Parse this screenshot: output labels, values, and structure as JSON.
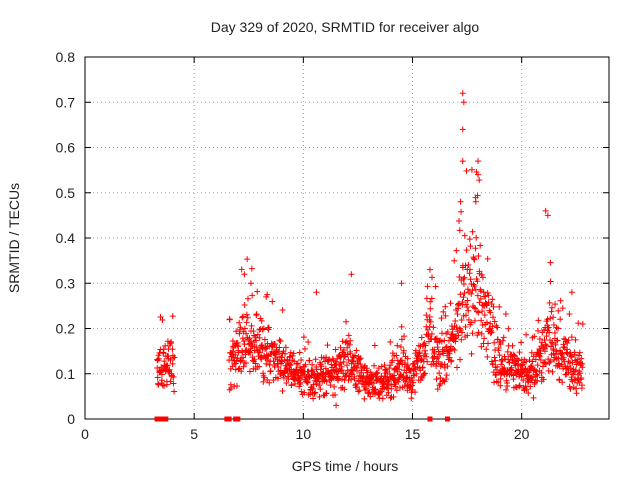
{
  "chart_data": {
    "type": "scatter",
    "title": "Day 329 of 2020, SRMTID for receiver algo",
    "xlabel": "GPS time / hours",
    "ylabel": "SRMTID / TECUs",
    "xlim": [
      0,
      24
    ],
    "ylim": [
      0,
      0.8
    ],
    "x_ticks": [
      "0",
      "5",
      "10",
      "15",
      "20"
    ],
    "y_ticks": [
      "0",
      "0.1",
      "0.2",
      "0.3",
      "0.4",
      "0.5",
      "0.6",
      "0.7",
      "0.8"
    ],
    "grid": true,
    "marker": "plus",
    "marker_color": "#ff0000",
    "zero_markers_x": [
      3.3,
      3.5,
      3.7,
      6.5,
      6.6,
      6.9,
      7.0,
      15.8,
      16.6
    ],
    "series_profile": [
      {
        "x": 3.3,
        "y": 0.1
      },
      {
        "x": 3.6,
        "y": 0.12
      },
      {
        "x": 3.9,
        "y": 0.12
      },
      {
        "x": 4.1,
        "y": 0.11
      },
      {
        "x": 6.6,
        "y": 0.12
      },
      {
        "x": 7.0,
        "y": 0.14
      },
      {
        "x": 7.5,
        "y": 0.2
      },
      {
        "x": 8.0,
        "y": 0.16
      },
      {
        "x": 8.5,
        "y": 0.14
      },
      {
        "x": 9.0,
        "y": 0.12
      },
      {
        "x": 9.5,
        "y": 0.1
      },
      {
        "x": 10.0,
        "y": 0.09
      },
      {
        "x": 10.5,
        "y": 0.09
      },
      {
        "x": 11.0,
        "y": 0.1
      },
      {
        "x": 11.5,
        "y": 0.11
      },
      {
        "x": 12.0,
        "y": 0.13
      },
      {
        "x": 12.5,
        "y": 0.1
      },
      {
        "x": 13.0,
        "y": 0.08
      },
      {
        "x": 13.5,
        "y": 0.08
      },
      {
        "x": 14.0,
        "y": 0.09
      },
      {
        "x": 14.5,
        "y": 0.12
      },
      {
        "x": 15.0,
        "y": 0.09
      },
      {
        "x": 15.8,
        "y": 0.18
      },
      {
        "x": 16.2,
        "y": 0.13
      },
      {
        "x": 16.6,
        "y": 0.15
      },
      {
        "x": 17.0,
        "y": 0.18
      },
      {
        "x": 17.3,
        "y": 0.28
      },
      {
        "x": 17.6,
        "y": 0.3
      },
      {
        "x": 18.0,
        "y": 0.28
      },
      {
        "x": 18.5,
        "y": 0.2
      },
      {
        "x": 19.0,
        "y": 0.13
      },
      {
        "x": 19.5,
        "y": 0.11
      },
      {
        "x": 20.0,
        "y": 0.1
      },
      {
        "x": 20.5,
        "y": 0.09
      },
      {
        "x": 21.0,
        "y": 0.15
      },
      {
        "x": 21.3,
        "y": 0.2
      },
      {
        "x": 21.6,
        "y": 0.14
      },
      {
        "x": 22.0,
        "y": 0.13
      },
      {
        "x": 22.5,
        "y": 0.11
      },
      {
        "x": 22.8,
        "y": 0.1
      }
    ],
    "peaks": [
      {
        "x": 7.3,
        "y": 0.32
      },
      {
        "x": 7.6,
        "y": 0.3
      },
      {
        "x": 8.3,
        "y": 0.27
      },
      {
        "x": 10.6,
        "y": 0.28
      },
      {
        "x": 12.2,
        "y": 0.32
      },
      {
        "x": 14.5,
        "y": 0.3
      },
      {
        "x": 15.8,
        "y": 0.33
      },
      {
        "x": 17.3,
        "y": 0.72
      },
      {
        "x": 17.35,
        "y": 0.7
      },
      {
        "x": 17.3,
        "y": 0.64
      },
      {
        "x": 17.3,
        "y": 0.57
      },
      {
        "x": 18.0,
        "y": 0.57
      },
      {
        "x": 18.0,
        "y": 0.54
      },
      {
        "x": 17.2,
        "y": 0.48
      },
      {
        "x": 17.9,
        "y": 0.48
      },
      {
        "x": 21.1,
        "y": 0.46
      },
      {
        "x": 21.2,
        "y": 0.45
      },
      {
        "x": 22.3,
        "y": 0.28
      },
      {
        "x": 22.8,
        "y": 0.21
      },
      {
        "x": 11.5,
        "y": 0.03
      }
    ]
  }
}
